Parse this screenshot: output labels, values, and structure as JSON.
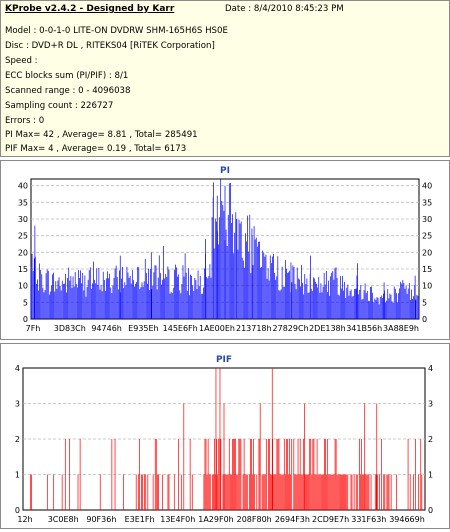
{
  "info": {
    "title": "KProbe v2.4.2 - Designed by Karr",
    "date": "Date : 8/4/2010 8:45:23 PM",
    "lines": [
      "Model : 0-0-1-0 LITE-ON DVDRW SHM-165H6S HS0E",
      "Disc : DVD+R DL , RITEKS04 [RiTEK Corporation]",
      "Speed :",
      "ECC blocks sum (PI/PIF) : 8/1",
      "Scanned range : 0 - 4096038",
      "Sampling count : 226727",
      "Errors : 0",
      "PI Max= 42 , Average= 8.81 , Total= 285491",
      "PIF Max= 4 , Average= 0.19 , Total= 6173"
    ]
  },
  "colors": {
    "bars": "#0000ff",
    "pif_bars": "#ff0000",
    "grid": "#bbbbbb",
    "title": "#2a4aa8"
  },
  "chart_data": [
    {
      "type": "bar",
      "title": "PI",
      "ylim": [
        0,
        42
      ],
      "yticks": [
        0,
        5,
        10,
        15,
        20,
        25,
        30,
        35,
        40
      ],
      "xticks": [
        "7Fh",
        "3D83Ch",
        "94746h",
        "E935Eh",
        "145E6Fh",
        "1AE00Eh",
        "213718h",
        "27829Ch",
        "2DE138h",
        "341B56h",
        "3A88E9h"
      ],
      "grid": true,
      "profile": [
        [
          0,
          15
        ],
        [
          2,
          13
        ],
        [
          4,
          12
        ],
        [
          6,
          11
        ],
        [
          8,
          11
        ],
        [
          10,
          12
        ],
        [
          12,
          12
        ],
        [
          14,
          11
        ],
        [
          16,
          12
        ],
        [
          18,
          12
        ],
        [
          20,
          11
        ],
        [
          22,
          12
        ],
        [
          24,
          13
        ],
        [
          26,
          14
        ],
        [
          28,
          14
        ],
        [
          30,
          13
        ],
        [
          32,
          13
        ],
        [
          34,
          12
        ],
        [
          36,
          12
        ],
        [
          38,
          13
        ],
        [
          40,
          12
        ],
        [
          42,
          11
        ],
        [
          44,
          11
        ],
        [
          46,
          12
        ],
        [
          47,
          28
        ],
        [
          48,
          36
        ],
        [
          50,
          33
        ],
        [
          52,
          30
        ],
        [
          54,
          27
        ],
        [
          56,
          24
        ],
        [
          58,
          20
        ],
        [
          60,
          18
        ],
        [
          62,
          16
        ],
        [
          64,
          14
        ],
        [
          66,
          13
        ],
        [
          68,
          12
        ],
        [
          70,
          12
        ],
        [
          72,
          11
        ],
        [
          74,
          11
        ],
        [
          76,
          11
        ],
        [
          78,
          12
        ],
        [
          80,
          11
        ],
        [
          82,
          10
        ],
        [
          84,
          10
        ],
        [
          86,
          9
        ],
        [
          88,
          8
        ],
        [
          90,
          7
        ],
        [
          92,
          7
        ],
        [
          94,
          8
        ],
        [
          96,
          9
        ],
        [
          98,
          8
        ],
        [
          100,
          9
        ]
      ],
      "spikes": [
        [
          1,
          28
        ],
        [
          23,
          19
        ],
        [
          31,
          20
        ],
        [
          45,
          24
        ],
        [
          47,
          41
        ],
        [
          48,
          37
        ],
        [
          50,
          40
        ],
        [
          53,
          30
        ],
        [
          57,
          25
        ],
        [
          67,
          17
        ],
        [
          72,
          19
        ],
        [
          84,
          13
        ],
        [
          91,
          11
        ],
        [
          99,
          13
        ]
      ]
    },
    {
      "type": "bar",
      "title": "PIF",
      "ylim": [
        0,
        4
      ],
      "yticks": [
        0,
        1,
        2,
        3,
        4
      ],
      "xticks": [
        "12h",
        "3C0E8h",
        "90F36h",
        "E3E1Fh",
        "13E4F0h",
        "1A29F0h",
        "208F80h",
        "2694F3h",
        "2CD9E7h",
        "331F63h",
        "394669h"
      ],
      "grid": true,
      "bands": [
        [
          0,
          5,
          0.5
        ],
        [
          5,
          20,
          0.8
        ],
        [
          20,
          45,
          1.0
        ],
        [
          45,
          50,
          3.0
        ],
        [
          50,
          62,
          3.5
        ],
        [
          62,
          80,
          3.0
        ],
        [
          80,
          92,
          2.5
        ],
        [
          92,
          100,
          1.2
        ]
      ],
      "tall": [
        [
          48,
          4
        ],
        [
          49,
          4
        ],
        [
          50,
          3
        ],
        [
          62,
          4
        ],
        [
          59,
          3
        ],
        [
          85,
          3
        ],
        [
          88,
          3
        ],
        [
          70,
          3
        ],
        [
          40,
          3
        ]
      ]
    }
  ]
}
